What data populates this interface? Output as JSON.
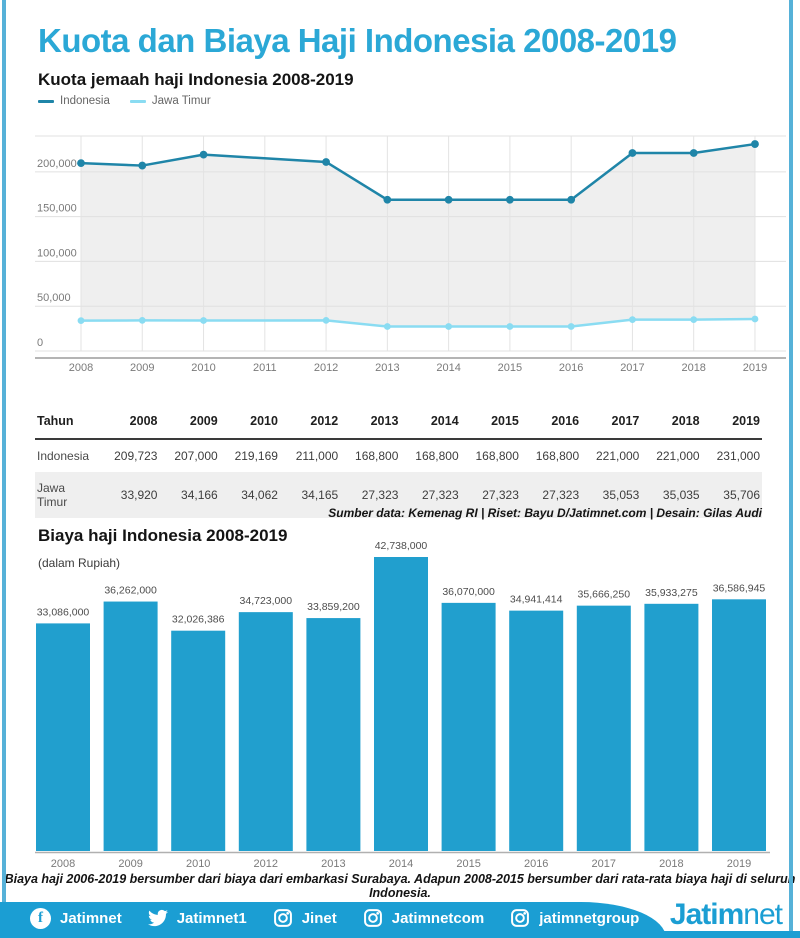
{
  "page": {
    "title": "Kuota dan Biaya Haji Indonesia 2008-2019"
  },
  "colors": {
    "accent_title": "#2ba8d6",
    "page_border": "#56b1d8",
    "footer_blue": "#1b9ed3",
    "area_fill": "#efefef"
  },
  "chart_data": [
    {
      "type": "line",
      "title": "Kuota jemaah haji Indonesia 2008-2019",
      "x_ticks": [
        "2008",
        "2009",
        "2010",
        "2011",
        "2012",
        "2013",
        "2014",
        "2015",
        "2016",
        "2017",
        "2018",
        "2019"
      ],
      "categories": [
        "2008",
        "2009",
        "2010",
        "2012",
        "2013",
        "2014",
        "2015",
        "2016",
        "2017",
        "2018",
        "2019"
      ],
      "series": [
        {
          "name": "Indonesia",
          "color": "#1f85a8",
          "values": [
            209723,
            207000,
            219169,
            211000,
            168800,
            168800,
            168800,
            168800,
            221000,
            221000,
            231000
          ]
        },
        {
          "name": "Jawa Timur",
          "color": "#8adcf2",
          "values": [
            33920,
            34166,
            34062,
            34165,
            27323,
            27323,
            27323,
            27323,
            35053,
            35035,
            35706
          ]
        }
      ],
      "y_ticks": [
        0,
        50000,
        100000,
        150000,
        200000
      ],
      "ylim": [
        0,
        240000
      ],
      "grid": true,
      "area_fill": "between-series",
      "legend_position": "top-left"
    },
    {
      "type": "bar",
      "title": "Biaya haji Indonesia 2008-2019",
      "subtitle": "(dalam Rupiah)",
      "categories": [
        "2008",
        "2009",
        "2010",
        "2012",
        "2013",
        "2014",
        "2015",
        "2016",
        "2017",
        "2018",
        "2019"
      ],
      "values": [
        33086000,
        36262000,
        32026386,
        34723000,
        33859200,
        42738000,
        36070000,
        34941414,
        35666250,
        35933275,
        36586945
      ],
      "data_labels": [
        "33,086,000",
        "36,262,000",
        "32,026,386",
        "34,723,000",
        "33,859,200",
        "42,738,000",
        "36,070,000",
        "34,941,414",
        "35,666,250",
        "35,933,275",
        "36,586,945"
      ],
      "bar_color": "#219fce",
      "ylim": [
        0,
        44000000
      ],
      "grid": false,
      "legend_position": "none"
    }
  ],
  "table": {
    "header": [
      "Tahun",
      "2008",
      "2009",
      "2010",
      "2012",
      "2013",
      "2014",
      "2015",
      "2016",
      "2017",
      "2018",
      "2019"
    ],
    "rows": [
      {
        "label": "Indonesia",
        "values": [
          "209,723",
          "207,000",
          "219,169",
          "211,000",
          "168,800",
          "168,800",
          "168,800",
          "168,800",
          "221,000",
          "221,000",
          "231,000"
        ]
      },
      {
        "label": "Jawa Timur",
        "values": [
          "33,920",
          "34,166",
          "34,062",
          "34,165",
          "27,323",
          "27,323",
          "27,323",
          "27,323",
          "35,053",
          "35,035",
          "35,706"
        ]
      }
    ]
  },
  "source_credit": "Sumber data: Kemenag RI | Riset: Bayu D/Jatimnet.com | Desain: Gilas Audi",
  "footnote": "Biaya haji 2006-2019 bersumber dari biaya dari embarkasi Surabaya. Adapun 2008-2015 bersumber dari rata-rata biaya haji di seluruh Indonesia.",
  "footer": {
    "socials": [
      {
        "icon": "facebook-icon",
        "handle": "Jatimnet"
      },
      {
        "icon": "twitter-icon",
        "handle": "Jatimnet1"
      },
      {
        "icon": "instagram-icon",
        "handle": "Jinet"
      },
      {
        "icon": "instagram-icon",
        "handle": "Jatimnetcom"
      },
      {
        "icon": "instagram-icon",
        "handle": "jatimnetgroup"
      }
    ],
    "logo_bold": "Jatim",
    "logo_light": "net"
  }
}
